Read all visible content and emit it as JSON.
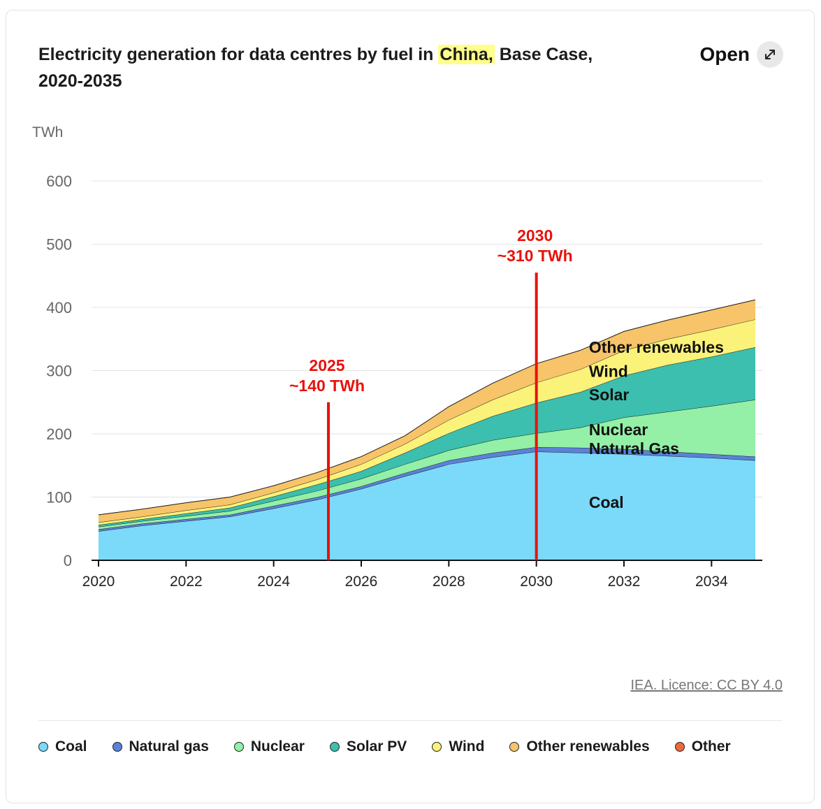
{
  "header": {
    "title_before": "Electricity generation for data centres by fuel in ",
    "title_highlight": "China,",
    "title_after": " Base Case, 2020-2035",
    "open_label": "Open"
  },
  "source": "IEA. Licence: CC BY 4.0",
  "colors": {
    "Coal": "#7bd9fa",
    "Natural gas": "#5b82d9",
    "Nuclear": "#93f0a6",
    "Solar PV": "#3cbfae",
    "Wind": "#fbf279",
    "Other renewables": "#f7c46a",
    "Other": "#f0683e",
    "annotation": "#e8120c",
    "highlight": "#ffff8a"
  },
  "legend": [
    "Coal",
    "Natural gas",
    "Nuclear",
    "Solar PV",
    "Wind",
    "Other renewables",
    "Other"
  ],
  "chart_data": {
    "type": "area",
    "stacked": true,
    "ylabel": "TWh",
    "ylim": [
      0,
      600
    ],
    "yticks": [
      0,
      100,
      200,
      300,
      400,
      500,
      600
    ],
    "xticks": [
      2020,
      2022,
      2024,
      2026,
      2028,
      2030,
      2032,
      2034
    ],
    "x": [
      2020,
      2021,
      2022,
      2023,
      2024,
      2025,
      2026,
      2027,
      2028,
      2029,
      2030,
      2031,
      2032,
      2033,
      2034,
      2035
    ],
    "grid": true,
    "series": [
      {
        "name": "Coal",
        "values": [
          46,
          55,
          62,
          69,
          82,
          96,
          113,
          133,
          152,
          163,
          172,
          170,
          168,
          165,
          162,
          158
        ]
      },
      {
        "name": "Natural gas",
        "values": [
          3,
          3,
          3,
          3,
          4,
          4,
          4,
          5,
          6,
          7,
          7,
          8,
          8,
          7,
          6,
          6
        ]
      },
      {
        "name": "Nuclear",
        "values": [
          4,
          4,
          5,
          6,
          8,
          10,
          12,
          14,
          16,
          20,
          22,
          32,
          50,
          63,
          76,
          90
        ]
      },
      {
        "name": "Solar PV",
        "values": [
          3,
          3,
          4,
          5,
          7,
          10,
          12,
          18,
          27,
          38,
          48,
          56,
          66,
          74,
          78,
          83
        ]
      },
      {
        "name": "Wind",
        "values": [
          4,
          4,
          5,
          5,
          6,
          8,
          11,
          14,
          21,
          26,
          32,
          36,
          40,
          41,
          43,
          44
        ]
      },
      {
        "name": "Other renewables",
        "values": [
          12,
          12,
          12,
          12,
          11,
          11,
          12,
          13,
          21,
          26,
          30,
          30,
          30,
          30,
          31,
          31
        ]
      }
    ],
    "series_labels": [
      "Other renewables",
      "Wind",
      "Solar",
      "Nuclear",
      "Natural Gas",
      "Coal"
    ],
    "annotations": [
      {
        "year_label": "2025",
        "value_label": "~140 TWh",
        "x": 2025.25,
        "y_top": 250
      },
      {
        "year_label": "2030",
        "value_label": "~310 TWh",
        "x": 2030,
        "y_top": 455
      }
    ]
  }
}
